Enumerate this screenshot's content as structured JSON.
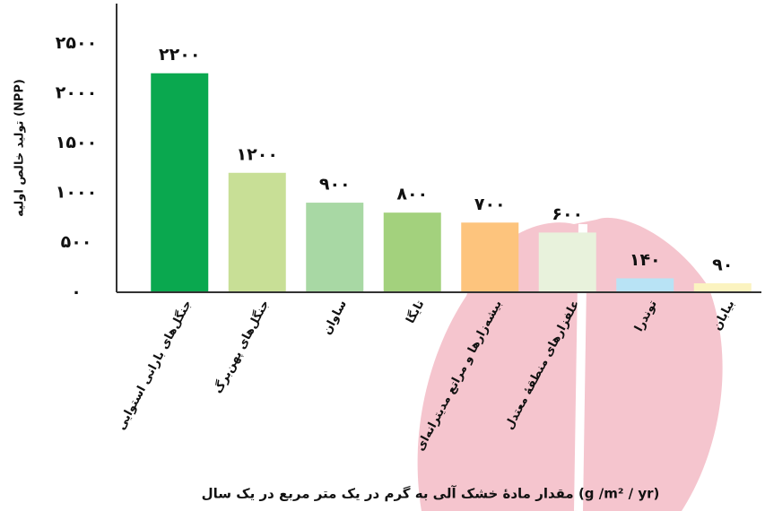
{
  "chart_data": {
    "type": "bar",
    "y_label": "تولید خالص اولیه (NPP)",
    "x_label": "مقدار مادهٔ خشک آلی به گرم در یک متر مربع در یک سال (g /m² / yr)",
    "categories": [
      "جنگل‌های بارانی استوایی",
      "جنگل‌های پهن‌برگ",
      "ساوان",
      "تایگا",
      "بیشه‌زارها و مراتع مدیترانه‌ای",
      "علفزارهای منطقهٔ معتدل",
      "توندرا",
      "بیابان"
    ],
    "values": [
      2200,
      1200,
      900,
      800,
      700,
      600,
      140,
      90
    ],
    "value_labels": [
      "۲۲۰۰",
      "۱۲۰۰",
      "۹۰۰",
      "۸۰۰",
      "۷۰۰",
      "۶۰۰",
      "۱۴۰",
      "۹۰"
    ],
    "colors": [
      "#0aa84f",
      "#c8df96",
      "#a8d8a4",
      "#a3d17d",
      "#fdc47d",
      "#e8f2dc",
      "#b8e3f5",
      "#fbf3c0"
    ],
    "ylim": [
      0,
      2900
    ],
    "yticks": [
      {
        "value": 0,
        "label": "۰"
      },
      {
        "value": 500,
        "label": "۵۰۰"
      },
      {
        "value": 1000,
        "label": "۱۰۰۰"
      },
      {
        "value": 1500,
        "label": "۱۵۰۰"
      },
      {
        "value": 2000,
        "label": "۲۰۰۰"
      },
      {
        "value": 2500,
        "label": "۲۵۰۰"
      }
    ]
  }
}
